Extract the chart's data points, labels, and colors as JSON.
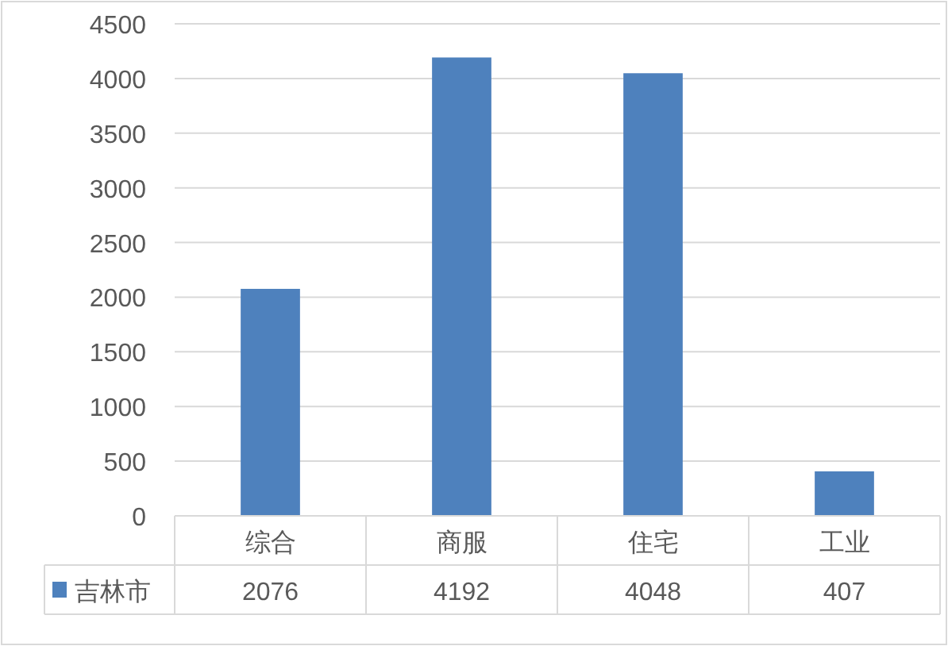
{
  "chart_data": {
    "type": "bar",
    "categories": [
      "综合",
      "商服",
      "住宅",
      "工业"
    ],
    "series": [
      {
        "name": "吉林市",
        "color": "#4e81bd",
        "values": [
          2076,
          4192,
          4048,
          407
        ]
      }
    ],
    "ylim": [
      0,
      4500
    ],
    "yticks": [
      0,
      500,
      1000,
      1500,
      2000,
      2500,
      3000,
      3500,
      4000,
      4500
    ],
    "grid": "y",
    "legend": "bottom",
    "data_labels": true
  }
}
